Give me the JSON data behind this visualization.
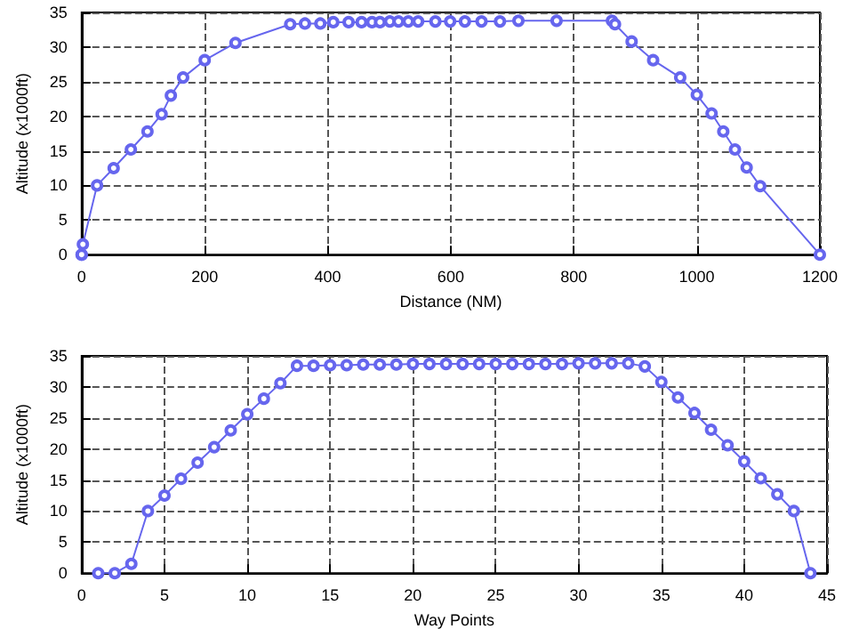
{
  "chart_data": [
    {
      "type": "line",
      "xlabel": "Distance (NM)",
      "ylabel": "Altitude (x1000ft)",
      "xlim": [
        0,
        1200
      ],
      "xticks": [
        0,
        200,
        400,
        600,
        800,
        1000,
        1200
      ],
      "ylim": [
        0,
        35
      ],
      "yticks": [
        0,
        5,
        10,
        15,
        20,
        25,
        30,
        35
      ],
      "grid": true,
      "marker": "circle",
      "line_style": "solid",
      "series": [
        {
          "color": "#6666ee",
          "x": [
            0,
            0,
            2,
            25,
            52,
            80,
            107,
            130,
            145,
            165,
            200,
            250,
            339,
            363,
            388,
            409,
            434,
            455,
            472,
            485,
            501,
            515,
            531,
            547,
            575,
            599,
            623,
            650,
            680,
            710,
            772,
            862,
            867,
            894,
            929,
            973,
            1000,
            1024,
            1043,
            1062,
            1081,
            1103,
            1200
          ],
          "values": [
            0,
            0,
            1.5,
            10,
            12.5,
            15.2,
            17.8,
            20.3,
            23,
            25.6,
            28.1,
            30.6,
            33.3,
            33.4,
            33.4,
            33.6,
            33.6,
            33.6,
            33.6,
            33.6,
            33.7,
            33.7,
            33.7,
            33.7,
            33.7,
            33.7,
            33.7,
            33.7,
            33.7,
            33.8,
            33.8,
            33.8,
            33.3,
            30.8,
            28.1,
            25.6,
            23.1,
            20.4,
            17.8,
            15.2,
            12.6,
            9.9,
            0
          ]
        }
      ]
    },
    {
      "type": "line",
      "xlabel": "Way Points",
      "ylabel": "Altitude (x1000ft)",
      "xlim": [
        0,
        45
      ],
      "xticks": [
        0,
        5,
        10,
        15,
        20,
        25,
        30,
        35,
        40,
        45
      ],
      "ylim": [
        0,
        35
      ],
      "yticks": [
        0,
        5,
        10,
        15,
        20,
        25,
        30,
        35
      ],
      "grid": true,
      "marker": "circle",
      "line_style": "solid",
      "series": [
        {
          "color": "#6666ee",
          "x": [
            1,
            2,
            3,
            4,
            5,
            6,
            7,
            8,
            9,
            10,
            11,
            12,
            13,
            14,
            15,
            16,
            17,
            18,
            19,
            20,
            21,
            22,
            23,
            24,
            25,
            26,
            27,
            28,
            29,
            30,
            31,
            32,
            33,
            34,
            35,
            36,
            37,
            38,
            39,
            40,
            41,
            42,
            43,
            44
          ],
          "values": [
            0,
            0,
            1.5,
            10,
            12.5,
            15.2,
            17.8,
            20.3,
            23,
            25.6,
            28.1,
            30.6,
            33.4,
            33.4,
            33.5,
            33.5,
            33.6,
            33.6,
            33.6,
            33.7,
            33.7,
            33.7,
            33.7,
            33.7,
            33.7,
            33.7,
            33.7,
            33.7,
            33.7,
            33.8,
            33.8,
            33.8,
            33.8,
            33.3,
            30.8,
            28.3,
            25.8,
            23.1,
            20.6,
            18,
            15.3,
            12.7,
            10,
            0
          ]
        }
      ]
    }
  ]
}
